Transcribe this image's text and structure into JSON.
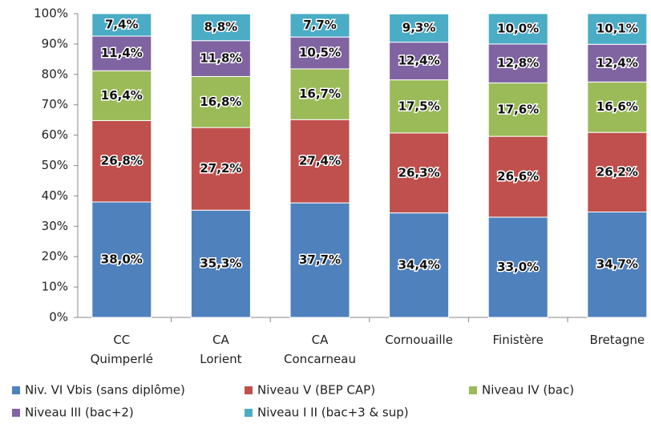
{
  "chart_data": {
    "type": "stacked_bar",
    "categories": [
      "CC Quimperlé",
      "CA Lorient",
      "CA Concarneau",
      "Cornouaille",
      "Finistère",
      "Bretagne"
    ],
    "series": [
      {
        "name": "Niv. VI Vbis (sans diplôme)",
        "color": "#4f81bd",
        "values": [
          38.0,
          35.3,
          37.7,
          34.4,
          33.0,
          34.7
        ],
        "value_labels": [
          "38,0%",
          "35,3%",
          "37,7%",
          "34,4%",
          "33,0%",
          "34,7%"
        ]
      },
      {
        "name": "Niveau V (BEP CAP)",
        "color": "#c0504d",
        "values": [
          26.8,
          27.2,
          27.4,
          26.3,
          26.6,
          26.2
        ],
        "value_labels": [
          "26,8%",
          "27,2%",
          "27,4%",
          "26,3%",
          "26,6%",
          "26,2%"
        ]
      },
      {
        "name": "Niveau IV (bac)",
        "color": "#9bbb59",
        "values": [
          16.4,
          16.8,
          16.7,
          17.5,
          17.6,
          16.6
        ],
        "value_labels": [
          "16,4%",
          "16,8%",
          "16,7%",
          "17,5%",
          "17,6%",
          "16,6%"
        ]
      },
      {
        "name": "Niveau III (bac+2)",
        "color": "#8064a2",
        "values": [
          11.4,
          11.8,
          10.5,
          12.4,
          12.8,
          12.4
        ],
        "value_labels": [
          "11,4%",
          "11,8%",
          "10,5%",
          "12,4%",
          "12,8%",
          "12,4%"
        ]
      },
      {
        "name": "Niveau I II (bac+3 & sup)",
        "color": "#4bacc6",
        "values": [
          7.4,
          8.8,
          7.7,
          9.3,
          10.0,
          10.1
        ],
        "value_labels": [
          "7,4%",
          "8,8%",
          "7,7%",
          "9,3%",
          "10,0%",
          "10,1%"
        ]
      }
    ],
    "ylim": [
      0,
      100
    ],
    "yticks": [
      {
        "value": 0,
        "label": "0%"
      },
      {
        "value": 10,
        "label": "10%"
      },
      {
        "value": 20,
        "label": "20%"
      },
      {
        "value": 30,
        "label": "30%"
      },
      {
        "value": 40,
        "label": "40%"
      },
      {
        "value": 50,
        "label": "50%"
      },
      {
        "value": 60,
        "label": "60%"
      },
      {
        "value": 70,
        "label": "70%"
      },
      {
        "value": 80,
        "label": "80%"
      },
      {
        "value": 90,
        "label": "90%"
      },
      {
        "value": 100,
        "label": "100%"
      }
    ],
    "legend": "bottom"
  }
}
